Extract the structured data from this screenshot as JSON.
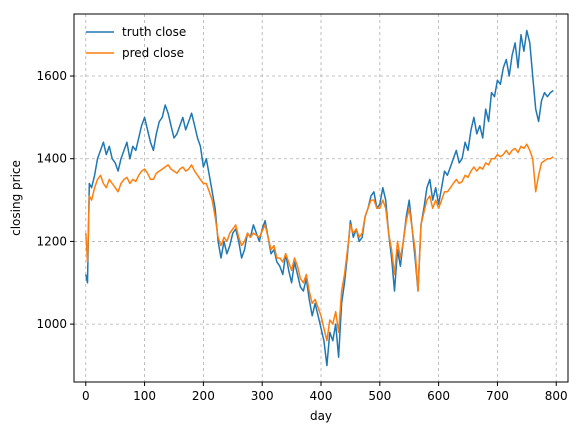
{
  "chart_data": {
    "type": "line",
    "xlabel": "day",
    "ylabel": "closing price",
    "xlim": [
      -20,
      820
    ],
    "ylim": [
      860,
      1750
    ],
    "xticks": [
      0,
      100,
      200,
      300,
      400,
      500,
      600,
      700,
      800
    ],
    "yticks": [
      1000,
      1200,
      1400,
      1600
    ],
    "grid": true,
    "legend": "top-left",
    "series": [
      {
        "name": "truth close",
        "color": "#1f77b4",
        "x": [
          0,
          3,
          6,
          10,
          15,
          20,
          25,
          30,
          35,
          40,
          45,
          50,
          55,
          60,
          65,
          70,
          75,
          80,
          85,
          90,
          95,
          100,
          105,
          110,
          115,
          120,
          125,
          130,
          135,
          140,
          145,
          150,
          155,
          160,
          165,
          170,
          175,
          180,
          185,
          190,
          195,
          200,
          205,
          210,
          215,
          220,
          225,
          230,
          235,
          240,
          245,
          250,
          255,
          260,
          265,
          270,
          275,
          280,
          285,
          290,
          295,
          300,
          305,
          310,
          315,
          320,
          325,
          330,
          335,
          340,
          345,
          350,
          355,
          360,
          365,
          370,
          375,
          380,
          385,
          390,
          395,
          400,
          405,
          410,
          415,
          420,
          425,
          430,
          435,
          440,
          445,
          450,
          455,
          460,
          465,
          470,
          475,
          480,
          485,
          490,
          495,
          500,
          505,
          510,
          515,
          520,
          525,
          530,
          535,
          540,
          545,
          550,
          555,
          560,
          565,
          570,
          575,
          580,
          585,
          590,
          595,
          600,
          605,
          610,
          615,
          620,
          625,
          630,
          635,
          640,
          645,
          650,
          655,
          660,
          665,
          670,
          675,
          680,
          685,
          690,
          695,
          700,
          705,
          710,
          715,
          720,
          725,
          730,
          735,
          740,
          745,
          750,
          755,
          760,
          765,
          770,
          775,
          780,
          785,
          790,
          795
        ],
        "values": [
          1120,
          1100,
          1340,
          1330,
          1360,
          1400,
          1420,
          1440,
          1410,
          1430,
          1400,
          1390,
          1370,
          1400,
          1420,
          1440,
          1400,
          1430,
          1420,
          1450,
          1480,
          1500,
          1470,
          1440,
          1420,
          1460,
          1490,
          1500,
          1530,
          1510,
          1480,
          1450,
          1460,
          1480,
          1500,
          1470,
          1490,
          1510,
          1480,
          1450,
          1430,
          1380,
          1400,
          1360,
          1320,
          1280,
          1200,
          1160,
          1200,
          1170,
          1190,
          1220,
          1230,
          1200,
          1160,
          1180,
          1220,
          1210,
          1240,
          1220,
          1200,
          1230,
          1250,
          1210,
          1170,
          1180,
          1150,
          1140,
          1120,
          1170,
          1130,
          1100,
          1150,
          1120,
          1090,
          1080,
          1110,
          1060,
          1020,
          1050,
          1020,
          990,
          960,
          900,
          980,
          960,
          1000,
          920,
          1050,
          1100,
          1170,
          1250,
          1210,
          1230,
          1200,
          1210,
          1260,
          1280,
          1310,
          1320,
          1280,
          1290,
          1330,
          1300,
          1220,
          1160,
          1080,
          1180,
          1140,
          1200,
          1260,
          1300,
          1230,
          1160,
          1080,
          1240,
          1280,
          1330,
          1350,
          1300,
          1330,
          1290,
          1330,
          1370,
          1360,
          1380,
          1400,
          1420,
          1390,
          1400,
          1440,
          1420,
          1470,
          1500,
          1460,
          1480,
          1450,
          1520,
          1490,
          1560,
          1550,
          1590,
          1580,
          1620,
          1640,
          1600,
          1650,
          1680,
          1620,
          1700,
          1660,
          1710,
          1680,
          1600,
          1520,
          1490,
          1540,
          1560,
          1550,
          1560,
          1565
        ]
      },
      {
        "name": "pred close",
        "color": "#ff7f0e",
        "x": [
          0,
          3,
          6,
          10,
          15,
          20,
          25,
          30,
          35,
          40,
          45,
          50,
          55,
          60,
          65,
          70,
          75,
          80,
          85,
          90,
          95,
          100,
          105,
          110,
          115,
          120,
          125,
          130,
          135,
          140,
          145,
          150,
          155,
          160,
          165,
          170,
          175,
          180,
          185,
          190,
          195,
          200,
          205,
          210,
          215,
          220,
          225,
          230,
          235,
          240,
          245,
          250,
          255,
          260,
          265,
          270,
          275,
          280,
          285,
          290,
          295,
          300,
          305,
          310,
          315,
          320,
          325,
          330,
          335,
          340,
          345,
          350,
          355,
          360,
          365,
          370,
          375,
          380,
          385,
          390,
          395,
          400,
          405,
          410,
          415,
          420,
          425,
          430,
          435,
          440,
          445,
          450,
          455,
          460,
          465,
          470,
          475,
          480,
          485,
          490,
          495,
          500,
          505,
          510,
          515,
          520,
          525,
          530,
          535,
          540,
          545,
          550,
          555,
          560,
          565,
          570,
          575,
          580,
          585,
          590,
          595,
          600,
          605,
          610,
          615,
          620,
          625,
          630,
          635,
          640,
          645,
          650,
          655,
          660,
          665,
          670,
          675,
          680,
          685,
          690,
          695,
          700,
          705,
          710,
          715,
          720,
          725,
          730,
          735,
          740,
          745,
          750,
          755,
          760,
          765,
          770,
          775,
          780,
          785,
          790,
          795
        ],
        "values": [
          1220,
          1150,
          1310,
          1300,
          1330,
          1350,
          1360,
          1340,
          1330,
          1350,
          1340,
          1330,
          1320,
          1340,
          1350,
          1355,
          1340,
          1350,
          1345,
          1360,
          1370,
          1375,
          1365,
          1350,
          1350,
          1365,
          1370,
          1375,
          1380,
          1385,
          1375,
          1370,
          1365,
          1375,
          1380,
          1370,
          1375,
          1385,
          1370,
          1360,
          1350,
          1340,
          1340,
          1320,
          1300,
          1260,
          1210,
          1190,
          1210,
          1200,
          1220,
          1230,
          1240,
          1210,
          1190,
          1200,
          1220,
          1210,
          1220,
          1215,
          1210,
          1225,
          1240,
          1210,
          1180,
          1190,
          1160,
          1160,
          1150,
          1170,
          1150,
          1130,
          1160,
          1140,
          1110,
          1100,
          1120,
          1080,
          1050,
          1060,
          1040,
          1020,
          990,
          960,
          1010,
          1000,
          1030,
          980,
          1080,
          1120,
          1180,
          1240,
          1220,
          1230,
          1210,
          1220,
          1260,
          1280,
          1300,
          1300,
          1280,
          1280,
          1300,
          1280,
          1220,
          1180,
          1120,
          1200,
          1160,
          1200,
          1250,
          1280,
          1230,
          1180,
          1080,
          1240,
          1270,
          1300,
          1310,
          1280,
          1300,
          1280,
          1300,
          1320,
          1320,
          1330,
          1340,
          1350,
          1340,
          1345,
          1360,
          1355,
          1370,
          1380,
          1370,
          1380,
          1375,
          1390,
          1385,
          1400,
          1400,
          1410,
          1405,
          1410,
          1420,
          1410,
          1420,
          1425,
          1415,
          1430,
          1425,
          1435,
          1420,
          1400,
          1320,
          1360,
          1390,
          1395,
          1400,
          1400,
          1405
        ]
      }
    ]
  }
}
